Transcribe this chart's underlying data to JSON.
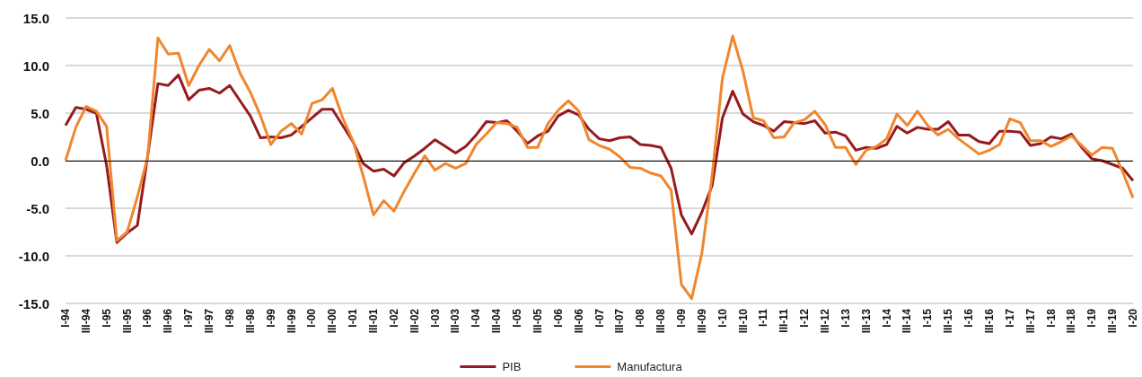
{
  "chart_data": {
    "type": "line",
    "categories": [
      "I-94",
      null,
      "III-94",
      null,
      "I-95",
      null,
      "III-95",
      null,
      "I-96",
      null,
      "III-96",
      null,
      "I-97",
      null,
      "III-97",
      null,
      "I-98",
      null,
      "III-98",
      null,
      "I-99",
      null,
      "III-99",
      null,
      "I-00",
      null,
      "III-00",
      null,
      "I-01",
      null,
      "III-01",
      null,
      "I-02",
      null,
      "III-02",
      null,
      "I-03",
      null,
      "III-03",
      null,
      "I-04",
      null,
      "III-04",
      null,
      "I-05",
      null,
      "III-05",
      null,
      "I-06",
      null,
      "III-06",
      null,
      "I-07",
      null,
      "III-07",
      null,
      "I-08",
      null,
      "III-08",
      null,
      "I-09",
      null,
      "III-09",
      null,
      "I-10",
      null,
      "III-10",
      null,
      "I-11",
      null,
      "III-11",
      null,
      "I-12",
      null,
      "III-12",
      null,
      "I-13",
      null,
      "III-13",
      null,
      "I-14",
      null,
      "III-14",
      null,
      "I-15",
      null,
      "III-15",
      null,
      "I-16",
      null,
      "III-16",
      null,
      "I-17",
      null,
      "III-17",
      null,
      "I-18",
      null,
      "III-18",
      null,
      "I-19",
      null,
      "III-19",
      null,
      "I-20"
    ],
    "series": [
      {
        "name": "PIB",
        "color": "#951b1e",
        "values": [
          3.7,
          5.6,
          5.4,
          5.0,
          -0.5,
          -8.6,
          -7.6,
          -6.8,
          0.5,
          8.1,
          7.9,
          9.0,
          6.4,
          7.4,
          7.6,
          7.1,
          7.9,
          6.3,
          4.7,
          2.4,
          2.5,
          2.4,
          2.7,
          3.6,
          4.5,
          5.4,
          5.4,
          3.7,
          2.0,
          -0.3,
          -1.1,
          -0.9,
          -1.6,
          -0.2,
          0.5,
          1.3,
          2.2,
          1.5,
          0.8,
          1.5,
          2.7,
          4.1,
          4.0,
          4.2,
          3.1,
          1.8,
          2.6,
          3.1,
          4.7,
          5.3,
          4.8,
          3.3,
          2.3,
          2.1,
          2.4,
          2.5,
          1.7,
          1.6,
          1.4,
          -0.8,
          -5.7,
          -7.7,
          -5.4,
          -2.6,
          4.5,
          7.3,
          4.9,
          4.1,
          3.7,
          3.1,
          4.1,
          4.0,
          3.9,
          4.2,
          2.9,
          3.0,
          2.6,
          1.1,
          1.4,
          1.3,
          1.7,
          3.6,
          2.9,
          3.5,
          3.3,
          3.3,
          4.1,
          2.7,
          2.7,
          2.0,
          1.8,
          3.1,
          3.1,
          3.0,
          1.6,
          1.8,
          2.5,
          2.3,
          2.8,
          1.4,
          0.2,
          0.0,
          -0.4,
          -0.8,
          -2.1
        ]
      },
      {
        "name": "Manufactura",
        "color": "#f0862e",
        "values": [
          0.0,
          3.5,
          5.7,
          5.2,
          3.6,
          -8.4,
          -7.5,
          -3.8,
          0.4,
          12.9,
          11.2,
          11.3,
          7.9,
          10.0,
          11.7,
          10.5,
          12.1,
          9.2,
          7.2,
          4.7,
          1.7,
          3.1,
          3.9,
          2.8,
          6.0,
          6.4,
          7.6,
          4.5,
          2.1,
          -1.6,
          -5.7,
          -4.2,
          -5.3,
          -3.2,
          -1.3,
          0.5,
          -1.0,
          -0.3,
          -0.8,
          -0.3,
          1.7,
          2.8,
          4.0,
          3.9,
          3.5,
          1.4,
          1.4,
          3.9,
          5.3,
          6.3,
          5.2,
          2.2,
          1.6,
          1.2,
          0.4,
          -0.7,
          -0.8,
          -1.3,
          -1.6,
          -3.1,
          -13.0,
          -14.5,
          -9.7,
          -1.5,
          8.7,
          13.1,
          9.4,
          4.5,
          4.2,
          2.4,
          2.5,
          4.0,
          4.3,
          5.2,
          3.8,
          1.4,
          1.4,
          -0.4,
          1.1,
          1.5,
          2.3,
          4.9,
          3.7,
          5.2,
          3.7,
          2.7,
          3.3,
          2.3,
          1.5,
          0.7,
          1.1,
          1.7,
          4.4,
          4.0,
          2.1,
          2.1,
          1.5,
          2.0,
          2.6,
          1.6,
          0.6,
          1.4,
          1.3,
          -1.2,
          -3.9
        ]
      }
    ],
    "ylim": [
      -15,
      15
    ],
    "yticks": [
      {
        "value": -15,
        "label": "-15.0"
      },
      {
        "value": -10,
        "label": "-10.0"
      },
      {
        "value": -5,
        "label": "-5.0"
      },
      {
        "value": 0,
        "label": "0.0"
      },
      {
        "value": 5,
        "label": "5.0"
      },
      {
        "value": 10,
        "label": "10.0"
      },
      {
        "value": 15,
        "label": "15.0"
      }
    ],
    "ref_lines": [
      {
        "axis": "y",
        "value": 0,
        "color": "#000000"
      }
    ],
    "grid": "y",
    "legend": "bottom",
    "marker": "none",
    "line_style": "solid"
  }
}
